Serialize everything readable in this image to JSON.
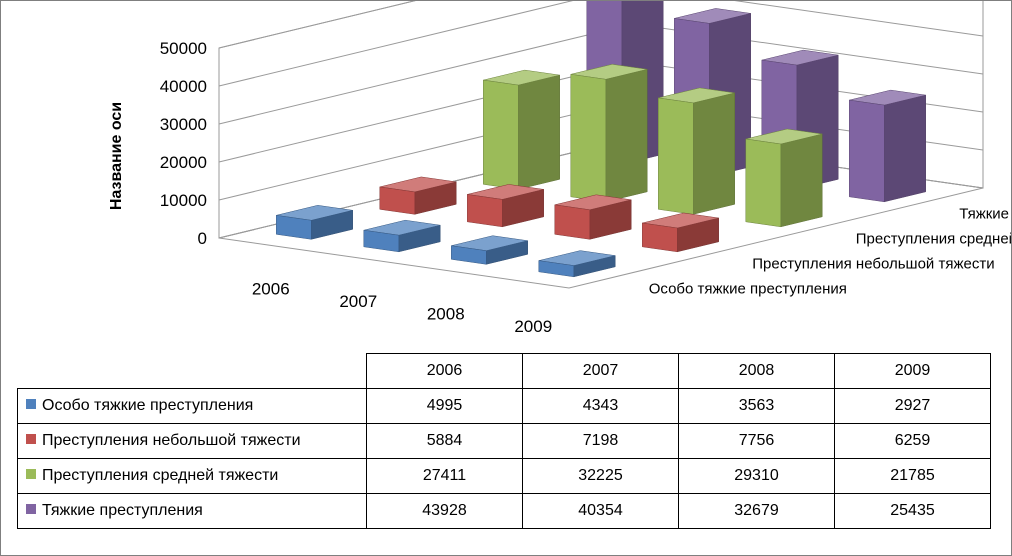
{
  "chart_data": {
    "type": "bar",
    "subtype": "3d-column",
    "categories": [
      "2006",
      "2007",
      "2008",
      "2009"
    ],
    "series": [
      {
        "name": "Особо тяжкие преступления",
        "color": "#4f81bd",
        "values": [
          4995,
          4343,
          3563,
          2927
        ]
      },
      {
        "name": "Преступления небольшой тяжести",
        "color": "#c0504d",
        "values": [
          5884,
          7198,
          7756,
          6259
        ]
      },
      {
        "name": "Преступления средней тяжести",
        "color": "#9bbb59",
        "values": [
          27411,
          32225,
          29310,
          21785
        ]
      },
      {
        "name": "Тяжкие преступления",
        "color": "#8064a2",
        "values": [
          43928,
          40354,
          32679,
          25435
        ]
      }
    ],
    "ylabel": "Название оси",
    "yticks": [
      "0",
      "10000",
      "20000",
      "30000",
      "40000",
      "50000"
    ],
    "ylim": [
      0,
      50000
    ],
    "grid": true,
    "data_table": true
  }
}
